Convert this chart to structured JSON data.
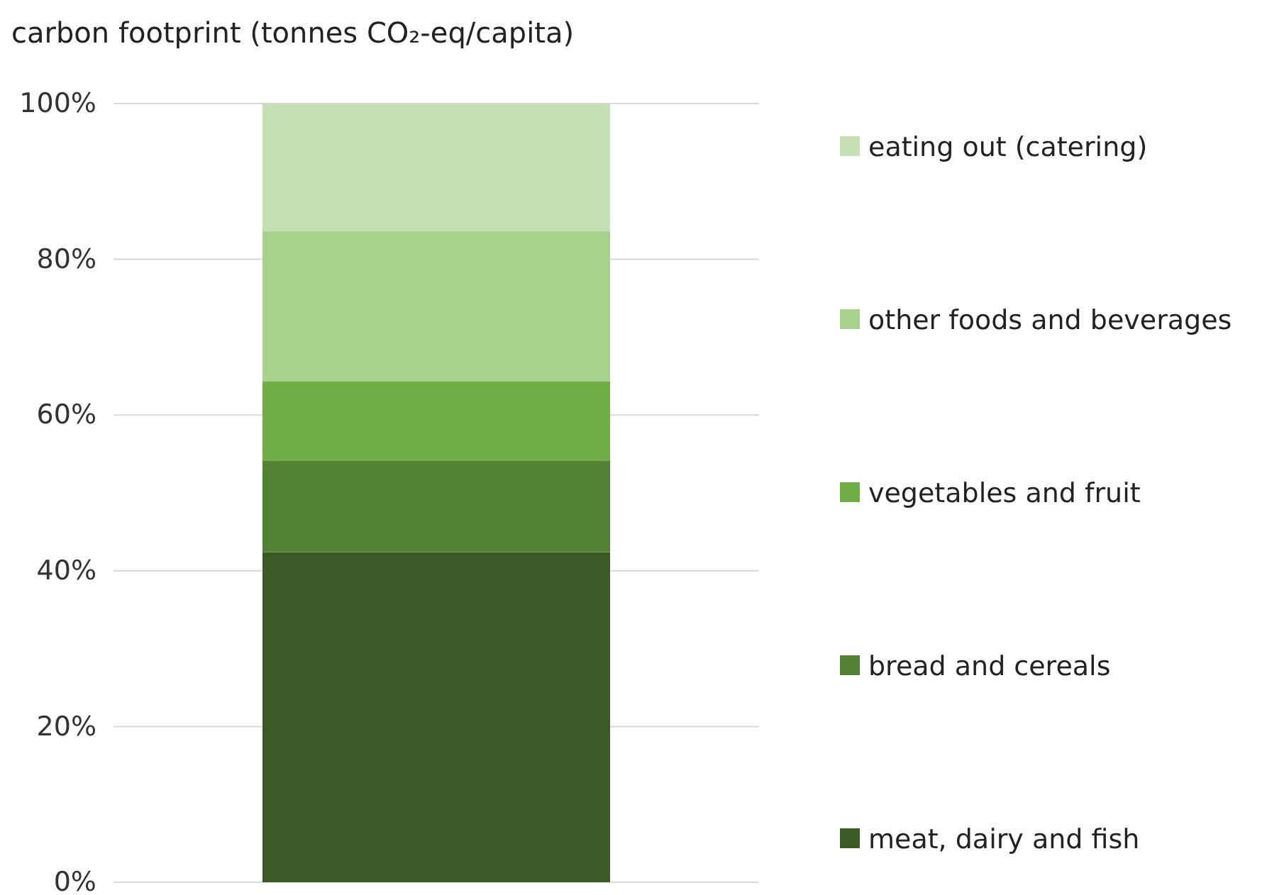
{
  "chart_data": {
    "type": "bar",
    "stacked": true,
    "title": "carbon footprint (tonnes CO₂-eq/capita)",
    "categories": [
      null
    ],
    "series": [
      {
        "name": "meat, dairy and fish",
        "color": "#3b5a25",
        "values": [
          42.4
        ]
      },
      {
        "name": "bread and cereals",
        "color": "#548235",
        "values": [
          11.7
        ]
      },
      {
        "name": "vegetables and fruit",
        "color": "#70ad47",
        "values": [
          10.2
        ]
      },
      {
        "name": "other foods and beverages",
        "color": "#a9d18e",
        "values": [
          19.3
        ]
      },
      {
        "name": "eating out (catering)",
        "color": "#c5e0b4",
        "values": [
          16.4
        ]
      }
    ],
    "ylim": [
      0,
      100
    ],
    "yticks": [
      {
        "value": 0,
        "label": "0%"
      },
      {
        "value": 20,
        "label": "20%"
      },
      {
        "value": 40,
        "label": "40%"
      },
      {
        "value": 60,
        "label": "60%"
      },
      {
        "value": 80,
        "label": "80%"
      },
      {
        "value": 100,
        "label": "100%"
      }
    ],
    "grid": "y",
    "legend": "right"
  }
}
